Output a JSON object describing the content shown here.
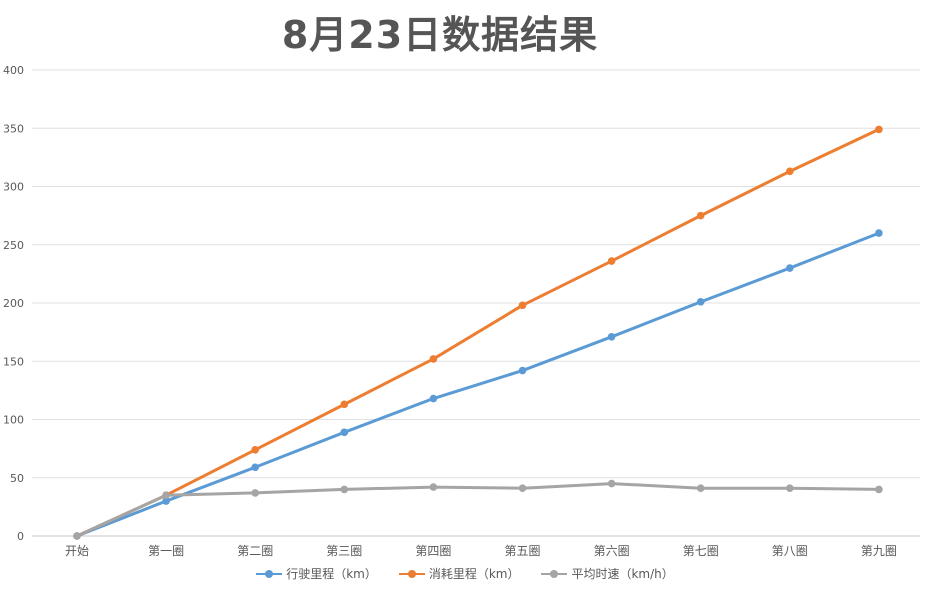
{
  "chart_data": {
    "type": "line",
    "title": "8月23日数据结果",
    "xlabel": "",
    "ylabel": "",
    "ylim": [
      0,
      400
    ],
    "yticks": [
      0,
      50,
      100,
      150,
      200,
      250,
      300,
      350,
      400
    ],
    "grid": true,
    "legend_position": "bottom",
    "categories": [
      "开始",
      "第一圈",
      "第二圈",
      "第三圈",
      "第四圈",
      "第五圈",
      "第六圈",
      "第七圈",
      "第八圈",
      "第九圈"
    ],
    "series": [
      {
        "name": "行驶里程（km）",
        "color": "#5b9bd5",
        "values": [
          0,
          30,
          59,
          89,
          118,
          142,
          171,
          201,
          230,
          260
        ]
      },
      {
        "name": "消耗里程（km）",
        "color": "#ed7d31",
        "values": [
          0,
          35,
          74,
          113,
          152,
          198,
          236,
          275,
          313,
          349
        ]
      },
      {
        "name": "平均时速（km/h）",
        "color": "#a5a5a5",
        "values": [
          0,
          35,
          37,
          40,
          42,
          41,
          45,
          41,
          41,
          40
        ]
      }
    ]
  }
}
